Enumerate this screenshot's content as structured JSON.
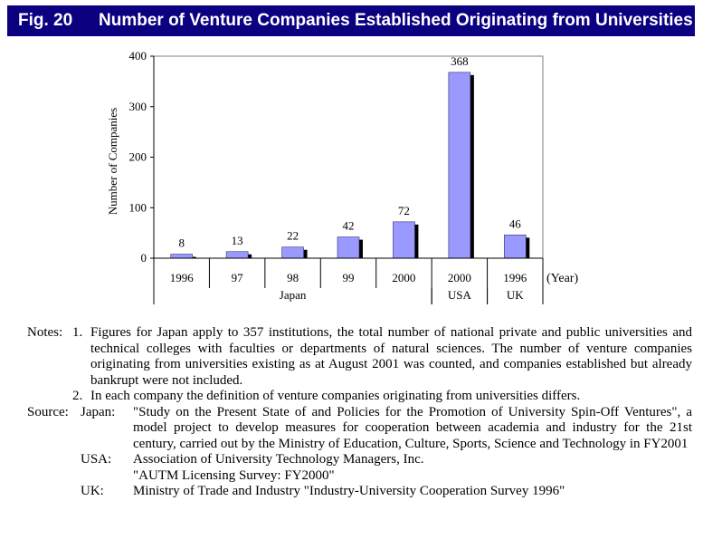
{
  "header": {
    "fig_label": "Fig. 20",
    "title": "Number of Venture Companies Established Originating from Universities"
  },
  "chart_data": {
    "type": "bar",
    "categories": [
      "1996",
      "97",
      "98",
      "99",
      "2000",
      "2000",
      "1996"
    ],
    "values": [
      8,
      13,
      22,
      42,
      72,
      368,
      46
    ],
    "data_labels": [
      "8",
      "13",
      "22",
      "42",
      "72",
      "368",
      "46"
    ],
    "group_labels": [
      "Japan",
      "USA",
      "UK"
    ],
    "groups": [
      [
        0,
        4
      ],
      [
        5,
        5
      ],
      [
        6,
        6
      ]
    ],
    "ylabel": "Number of Companies",
    "x_unit": "(Year)",
    "ylim": [
      0,
      400
    ],
    "yticks": [
      "0",
      "100",
      "200",
      "300",
      "400"
    ],
    "bar_color": "#9999ff",
    "shadow_color": "#000000",
    "grid": false
  },
  "notes": {
    "label": "Notes:",
    "items": [
      {
        "num": "1.",
        "text": "Figures for Japan apply to 357 institutions, the total number of national private and public universities and technical colleges with faculties or departments of natural sciences. The number of venture companies originating from universities existing as at August 2001 was counted, and companies established but already bankrupt were not included."
      },
      {
        "num": "2.",
        "text": "In each company the definition of venture companies originating from universities differs."
      }
    ]
  },
  "source": {
    "label": "Source:",
    "entries": [
      {
        "who": "Japan:",
        "text": "\"Study on the Present State of and Policies for the Promotion of University Spin-Off Ventures\", a model project to develop measures for cooperation between academia and industry for the 21st century, carried out by the Ministry of Education, Culture, Sports, Science and Technology in FY2001"
      },
      {
        "who": "USA:",
        "text": "Association of University Technology Managers, Inc."
      },
      {
        "who": "",
        "text": "\"AUTM Licensing Survey: FY2000\""
      },
      {
        "who": "UK:",
        "text": "Ministry of Trade and Industry \"Industry-University Cooperation Survey 1996\""
      }
    ]
  }
}
